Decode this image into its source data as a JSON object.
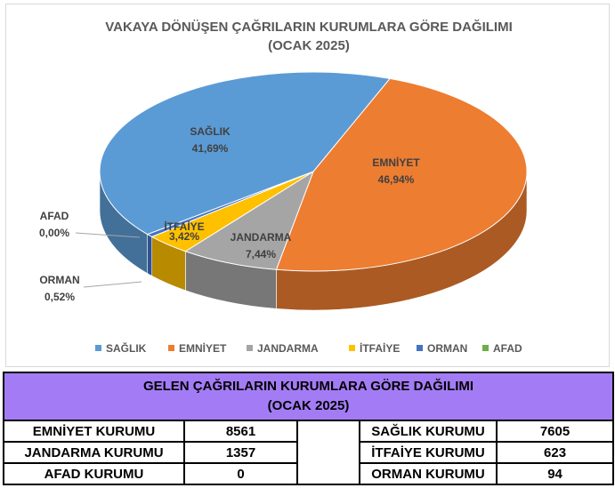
{
  "chart_data": {
    "type": "pie",
    "style": "3d",
    "title": "VAKAYA DÖNÜŞEN ÇAĞRILARIN KURUMLARA GÖRE DAĞILIMI",
    "subtitle": "(OCAK 2025)",
    "legend_position": "bottom",
    "slices": [
      {
        "name": "SAĞLIK",
        "value": 41.69,
        "label": "41,69%",
        "color": "#5b9bd5"
      },
      {
        "name": "EMNİYET",
        "value": 46.94,
        "label": "46,94%",
        "color": "#ed7d31"
      },
      {
        "name": "JANDARMA",
        "value": 7.44,
        "label": "7,44%",
        "color": "#a5a5a5"
      },
      {
        "name": "İTFAİYE",
        "value": 3.42,
        "label": "3,42%",
        "color": "#ffc000"
      },
      {
        "name": "ORMAN",
        "value": 0.52,
        "label": "0,52%",
        "color": "#4472c4"
      },
      {
        "name": "AFAD",
        "value": 0.0,
        "label": "0,00%",
        "color": "#70ad47"
      }
    ]
  },
  "table": {
    "title_line1": "GELEN ÇAĞRILARIN KURUMLARA GÖRE DAĞILIMI",
    "title_line2": "(OCAK 2025)",
    "left": [
      {
        "name": "EMNİYET KURUMU",
        "value": "8561"
      },
      {
        "name": "JANDARMA KURUMU",
        "value": "1357"
      },
      {
        "name": "AFAD KURUMU",
        "value": "0"
      }
    ],
    "right": [
      {
        "name": "SAĞLIK KURUMU",
        "value": "7605"
      },
      {
        "name": "İTFAİYE KURUMU",
        "value": "623"
      },
      {
        "name": "ORMAN KURUMU",
        "value": "94"
      }
    ]
  }
}
